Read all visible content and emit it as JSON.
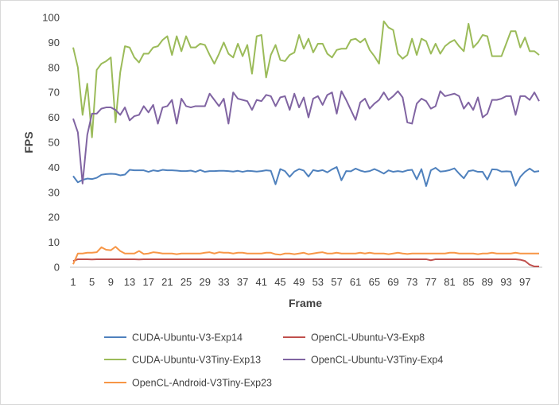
{
  "chart_data": {
    "type": "line",
    "title": "",
    "xlabel": "Frame",
    "ylabel": "FPS",
    "ylim": [
      0,
      100
    ],
    "yticks": [
      0,
      10,
      20,
      30,
      40,
      50,
      60,
      70,
      80,
      90,
      100
    ],
    "xlim": [
      1,
      100
    ],
    "xticks": [
      1,
      5,
      9,
      13,
      17,
      21,
      25,
      29,
      33,
      37,
      41,
      45,
      49,
      53,
      57,
      61,
      65,
      69,
      73,
      77,
      81,
      85,
      89,
      93,
      97
    ],
    "grid": false,
    "legend_position": "bottom",
    "series": [
      {
        "name": "CUDA-Ubuntu-V3-Exp14",
        "color": "#4f81bd",
        "values": [
          36.5,
          34,
          35,
          35.5,
          35.3,
          35.8,
          37,
          37.3,
          37.4,
          37.3,
          36.8,
          37.1,
          39,
          38.8,
          38.8,
          38.8,
          38.2,
          38.8,
          38.5,
          39,
          38.8,
          38.8,
          38.7,
          38.5,
          38.5,
          38.7,
          38.2,
          38.9,
          38.2,
          38.5,
          38.5,
          38.6,
          38.6,
          38.5,
          38.3,
          38.6,
          38.2,
          38.6,
          38.5,
          38.3,
          38.5,
          38.8,
          38.6,
          33.2,
          39.3,
          38.5,
          36.2,
          38.3,
          39.3,
          38.7,
          36.3,
          38.9,
          38.5,
          38.9,
          38,
          39.2,
          40.1,
          34.8,
          38.5,
          38.4,
          39.5,
          38.7,
          38.2,
          38.5,
          39.3,
          38.5,
          37.5,
          38.8,
          38.2,
          38.5,
          38.2,
          38.8,
          39,
          35.2,
          39.3,
          32.5,
          38.8,
          39.8,
          38.3,
          38.5,
          38.9,
          39.6,
          37.5,
          35.6,
          38.5,
          38.8,
          38.2,
          38.2,
          35.1,
          39.2,
          39.1,
          38.3,
          38.4,
          38.3,
          32.6,
          36.2,
          38.2,
          39.5,
          38.2,
          38.5
        ]
      },
      {
        "name": "OpenCL-Ubuntu-V3-Exp8",
        "color": "#c0504d",
        "values": [
          2.5,
          3.2,
          3.2,
          3.2,
          3.1,
          3.2,
          3.2,
          3.2,
          3.2,
          3.2,
          3.2,
          3.2,
          3.2,
          3.2,
          3.1,
          3.2,
          3.2,
          3.2,
          3.2,
          3.2,
          3.2,
          3.2,
          3.2,
          3.2,
          3.2,
          3.2,
          3.2,
          3.2,
          3.2,
          3.2,
          3.2,
          3.2,
          3.2,
          3.2,
          3.2,
          3.2,
          3.2,
          3.2,
          3.2,
          3.2,
          3.2,
          3.2,
          3.2,
          3.2,
          3.2,
          3.2,
          3.2,
          3.2,
          3.2,
          3.2,
          3.2,
          3.2,
          3.2,
          3.2,
          3.2,
          3.2,
          3.2,
          3.2,
          3.2,
          3.2,
          3.2,
          3.2,
          3.2,
          3.2,
          3.2,
          3.2,
          3.2,
          3.2,
          3.2,
          3.2,
          3.2,
          3.2,
          3.2,
          3.2,
          3.2,
          3.2,
          2.8,
          3.2,
          3.2,
          3.2,
          3.2,
          3.2,
          3.2,
          3.2,
          3.2,
          3.2,
          3.2,
          3.2,
          3.2,
          3.2,
          3.2,
          3.2,
          3.2,
          3.2,
          3.2,
          3.0,
          2.5,
          1.0,
          0.3,
          0.3
        ]
      },
      {
        "name": "CUDA-Ubuntu-V3Tiny-Exp13",
        "color": "#9bbb59",
        "values": [
          88,
          80,
          61,
          73.5,
          52,
          79,
          81.5,
          82.5,
          84,
          58,
          78,
          88.5,
          88,
          84,
          82,
          85.5,
          85.5,
          88,
          88.5,
          91,
          92.5,
          85,
          92.5,
          86.5,
          92.5,
          88,
          88,
          89.5,
          89,
          85,
          81.5,
          85.5,
          90,
          85.5,
          84,
          89.5,
          84.5,
          89,
          77.5,
          92.5,
          93,
          76,
          85,
          89,
          83,
          82.5,
          85,
          86,
          93,
          87.5,
          91.5,
          86,
          89.5,
          89.5,
          85.5,
          84,
          87,
          87.5,
          87.5,
          91,
          91.5,
          90,
          91.5,
          87,
          84.5,
          81.5,
          98.5,
          96,
          95,
          85.5,
          83.5,
          85,
          91.5,
          85,
          91.5,
          90.5,
          85.5,
          89.5,
          85.5,
          88.5,
          90,
          91,
          88.5,
          86.5,
          97.5,
          88,
          90,
          93,
          92.5,
          84.5,
          84.5,
          84.5,
          89.5,
          94.5,
          94.5,
          88,
          92,
          86.5,
          86.5,
          85
        ]
      },
      {
        "name": "OpenCL-Ubuntu-V3Tiny-Exp4",
        "color": "#8064a2",
        "values": [
          59.5,
          54,
          33.5,
          53,
          61.5,
          61.5,
          63.5,
          64,
          64,
          63,
          61,
          64,
          58.8,
          60.5,
          61,
          64.5,
          62,
          65,
          57.5,
          64,
          64.5,
          67,
          57.5,
          67.5,
          64.5,
          64,
          64.5,
          64.5,
          64.5,
          69.5,
          67,
          64.5,
          67.5,
          57.5,
          70,
          67.5,
          67,
          66.5,
          63,
          67,
          66.5,
          69,
          68.5,
          64.5,
          68,
          68.5,
          63,
          69.5,
          64,
          68,
          60,
          67.5,
          68.5,
          65,
          69,
          70,
          61.5,
          70.5,
          67,
          63,
          59,
          66,
          67.5,
          63.5,
          65.5,
          67,
          70,
          67,
          68.5,
          70.5,
          68,
          58,
          57.5,
          65.5,
          67.5,
          66.5,
          63.5,
          64.5,
          70.5,
          68.5,
          69,
          69.5,
          68.5,
          63.5,
          66,
          63,
          68,
          60,
          61.5,
          67,
          67,
          67.5,
          68.5,
          68.5,
          61,
          68.5,
          68.5,
          67,
          70,
          66.5
        ]
      },
      {
        "name": "OpenCL-Android-V3Tiny-Exp23",
        "color": "#f79646",
        "values": [
          1.2,
          5.5,
          5.5,
          5.8,
          5.8,
          6,
          8,
          7,
          6.8,
          8.2,
          6.5,
          5.5,
          5.5,
          5.5,
          6.5,
          5.3,
          5.5,
          6,
          5.8,
          5.5,
          5.5,
          5.5,
          5.2,
          5.5,
          5.5,
          5.5,
          5.5,
          5.5,
          5.8,
          6,
          5.5,
          6,
          5.8,
          5.8,
          5.5,
          5.8,
          5.8,
          5.5,
          5.5,
          5.5,
          5.5,
          5.8,
          5.8,
          5.2,
          5,
          5.5,
          5.5,
          5.2,
          5.5,
          5.8,
          5.2,
          5.5,
          5.8,
          6,
          5.5,
          5.5,
          5.8,
          5.5,
          5.5,
          5.5,
          5.5,
          5.8,
          5.5,
          5.8,
          5.5,
          5.5,
          5.5,
          5.2,
          5.5,
          5.8,
          5.5,
          5.3,
          5.5,
          5.5,
          5.5,
          5.5,
          5.5,
          5.5,
          5.5,
          5.5,
          5.8,
          5.8,
          5.5,
          5.5,
          5.5,
          5.5,
          5.2,
          5.5,
          5.5,
          5.8,
          5.5,
          5.5,
          5.5,
          5.5,
          5.8,
          5.5,
          5.5,
          5.5,
          5.5,
          5.5
        ]
      }
    ]
  }
}
